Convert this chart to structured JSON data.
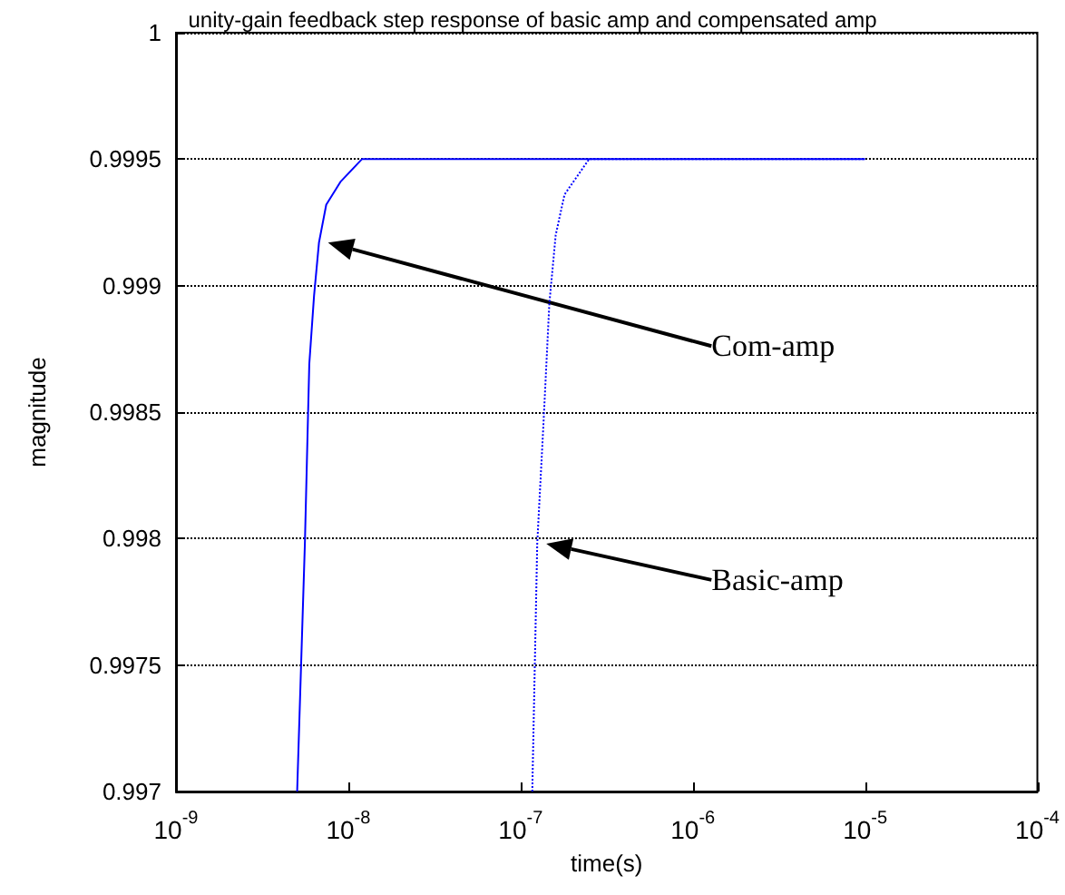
{
  "chart_data": {
    "type": "line",
    "title": "unity-gain feedback step response of basic amp and compensated amp",
    "xlabel": "time(s)",
    "ylabel": "magnitude",
    "log": "x",
    "xlim": [
      1e-09,
      0.0001
    ],
    "xticks": [
      {
        "value": 1e-09,
        "label": "10$^{-9}$"
      },
      {
        "value": 1e-08,
        "label": "10$^{-8}$"
      },
      {
        "value": 1e-07,
        "label": "10$^{-7}$"
      },
      {
        "value": 1e-06,
        "label": "10$^{-6}$"
      },
      {
        "value": 1e-05,
        "label": "10$^{-5}$"
      },
      {
        "value": 0.0001,
        "label": "10$^{-4}$"
      }
    ],
    "ylim": [
      0.997,
      1
    ],
    "yticks": [
      0.997,
      0.9975,
      0.998,
      0.9985,
      0.999,
      0.9995,
      1
    ],
    "grid": "y",
    "marker": "none",
    "series": [
      {
        "color": "#0000ff",
        "line_style": "solid",
        "x": [
          5.05e-09,
          5.6e-09,
          5.94e-09,
          6.33e-09,
          6.76e-09,
          7.45e-09,
          9e-09,
          1.2e-08,
          1e-07,
          1e-06,
          1e-05
        ],
        "values": [
          0.997,
          0.99798,
          0.99869,
          0.99896,
          0.99917,
          0.99932,
          0.99941,
          0.9995,
          0.9995,
          0.9995,
          0.9995
        ]
      },
      {
        "color": "#0000ff",
        "line_style": "dotted",
        "x": [
          1.17e-07,
          1.25e-07,
          1.36e-07,
          1.47e-07,
          1.6e-07,
          1.8e-07,
          2.5e-07,
          1e-06,
          1e-05
        ],
        "values": [
          0.997,
          0.99798,
          0.99846,
          0.99893,
          0.9992,
          0.99936,
          0.9995,
          0.9995,
          0.9995
        ]
      }
    ],
    "annotations": [
      "Com-amp",
      "Basic-amp"
    ]
  }
}
